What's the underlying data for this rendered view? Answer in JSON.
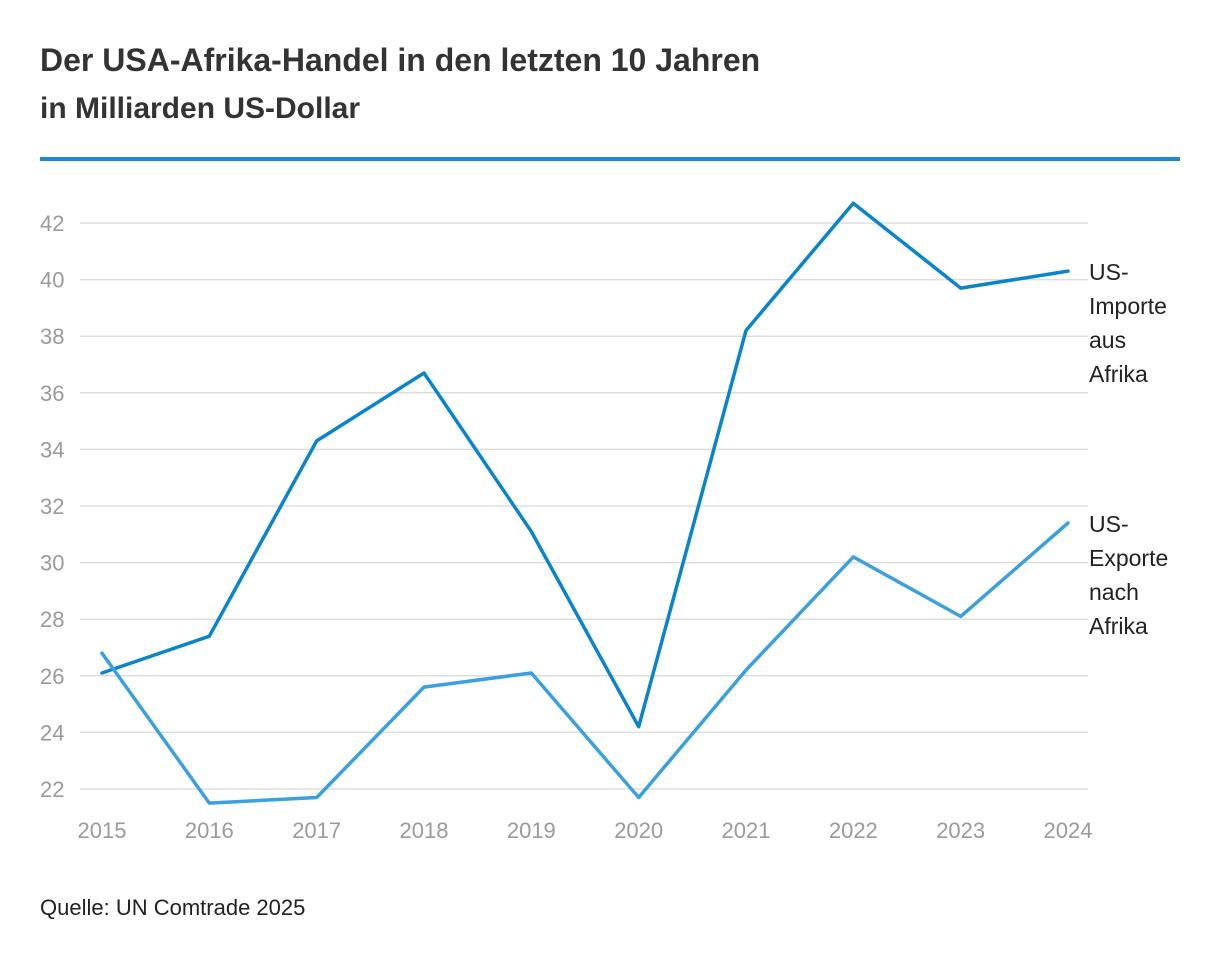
{
  "title": "Der USA-Afrika-Handel in den letzten 10 Jahren",
  "subtitle": "in Milliarden US-Dollar",
  "source": "Quelle: UN Comtrade 2025",
  "colors": {
    "rule": "#1a8ad4",
    "grid": "#dddddd",
    "tick": "#9a9a9a",
    "label": "#222222"
  },
  "chart_data": {
    "type": "line",
    "title": "Der USA-Afrika-Handel in den letzten 10 Jahren",
    "subtitle": "in Milliarden US-Dollar",
    "xlabel": "",
    "ylabel": "",
    "x": [
      "2015",
      "2016",
      "2017",
      "2018",
      "2019",
      "2020",
      "2021",
      "2022",
      "2023",
      "2024"
    ],
    "ylim": [
      21,
      43
    ],
    "yticks": [
      22,
      24,
      26,
      28,
      30,
      32,
      34,
      36,
      38,
      40,
      42
    ],
    "grid": true,
    "legend": "inline-right",
    "series": [
      {
        "name": "US-Importe aus Afrika",
        "label_lines": [
          "US-",
          "Importe",
          "aus",
          "Afrika"
        ],
        "color": "#0a84cc",
        "values": [
          26.1,
          27.4,
          34.3,
          36.7,
          31.1,
          24.2,
          38.2,
          42.7,
          39.7,
          40.3
        ]
      },
      {
        "name": "US-Exporte nach Afrika",
        "label_lines": [
          "US-",
          "Exporte",
          "nach",
          "Afrika"
        ],
        "color": "#3ba0de",
        "values": [
          26.8,
          21.5,
          21.7,
          25.6,
          26.1,
          21.7,
          26.2,
          30.2,
          28.1,
          31.4
        ]
      }
    ]
  }
}
